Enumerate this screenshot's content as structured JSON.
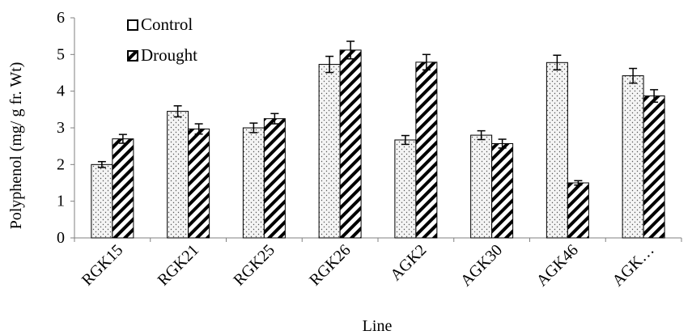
{
  "chart_data": {
    "type": "bar",
    "title": "",
    "xlabel": "Line",
    "ylabel": "Polyphenol (mg/ g fr. Wt)",
    "ylim": [
      0,
      6
    ],
    "yticks": [
      "0",
      "1",
      "2",
      "3",
      "4",
      "5",
      "6"
    ],
    "categories": [
      "RGK15",
      "RGK21",
      "RGK25",
      "RGK26",
      "AGK2",
      "AGK30",
      "AGK46",
      "AGK…"
    ],
    "series": [
      {
        "name": "Control",
        "pattern": "dots",
        "values": [
          2.0,
          3.45,
          3.0,
          4.73,
          2.67,
          2.8,
          4.78,
          4.42
        ],
        "errors": [
          0.08,
          0.15,
          0.13,
          0.22,
          0.12,
          0.12,
          0.2,
          0.2
        ]
      },
      {
        "name": "Drought",
        "pattern": "diagonal-hatch",
        "values": [
          2.7,
          2.97,
          3.25,
          5.12,
          4.79,
          2.57,
          1.5,
          3.87
        ],
        "errors": [
          0.12,
          0.14,
          0.14,
          0.24,
          0.21,
          0.12,
          0.06,
          0.17
        ]
      }
    ],
    "legend": {
      "position": "top-left",
      "entries": [
        "Control",
        "Drought"
      ]
    },
    "grid": false,
    "error_bars": true,
    "colors": {
      "bar_stroke": "#000000",
      "control_fill": "#f2f2f2",
      "drought_fill": "#ffffff",
      "axis": "#808080"
    }
  }
}
